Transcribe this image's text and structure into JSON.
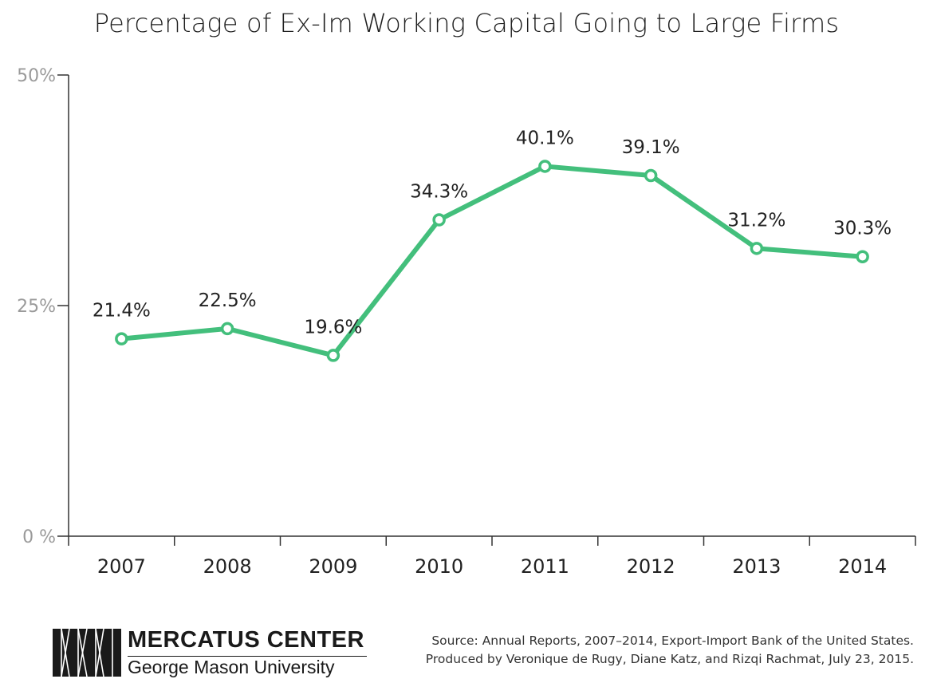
{
  "colors": {
    "line": "#43bf7c",
    "marker_fill": "#ffffff",
    "axis": "#333333",
    "y_tick_text": "#9a9a9a"
  },
  "chart_data": {
    "type": "line",
    "title": "Percentage of Ex-Im Working Capital Going to Large Firms",
    "categories": [
      "2007",
      "2008",
      "2009",
      "2010",
      "2011",
      "2012",
      "2013",
      "2014"
    ],
    "series": [
      {
        "values": [
          21.4,
          22.5,
          19.6,
          34.3,
          40.1,
          39.1,
          31.2,
          30.3
        ],
        "value_labels": [
          "21.4%",
          "22.5%",
          "19.6%",
          "34.3%",
          "40.1%",
          "39.1%",
          "31.2%",
          "30.3%"
        ]
      }
    ],
    "ylim": [
      0,
      50
    ],
    "yticks": [
      0,
      25,
      50
    ],
    "ytick_labels": [
      "0 %",
      "25%",
      "50%"
    ],
    "grid": false,
    "markers": "hollow-circle"
  },
  "footer": {
    "logo_icon": "mercatus-columns-icon",
    "org_name": "MERCATUS CENTER",
    "org_sub": "George Mason University",
    "source_line1": "Source: Annual Reports, 2007–2014, Export-Import Bank of the United States.",
    "source_line2": "Produced by Veronique de Rugy, Diane Katz, and Rizqi Rachmat, July 23, 2015."
  }
}
